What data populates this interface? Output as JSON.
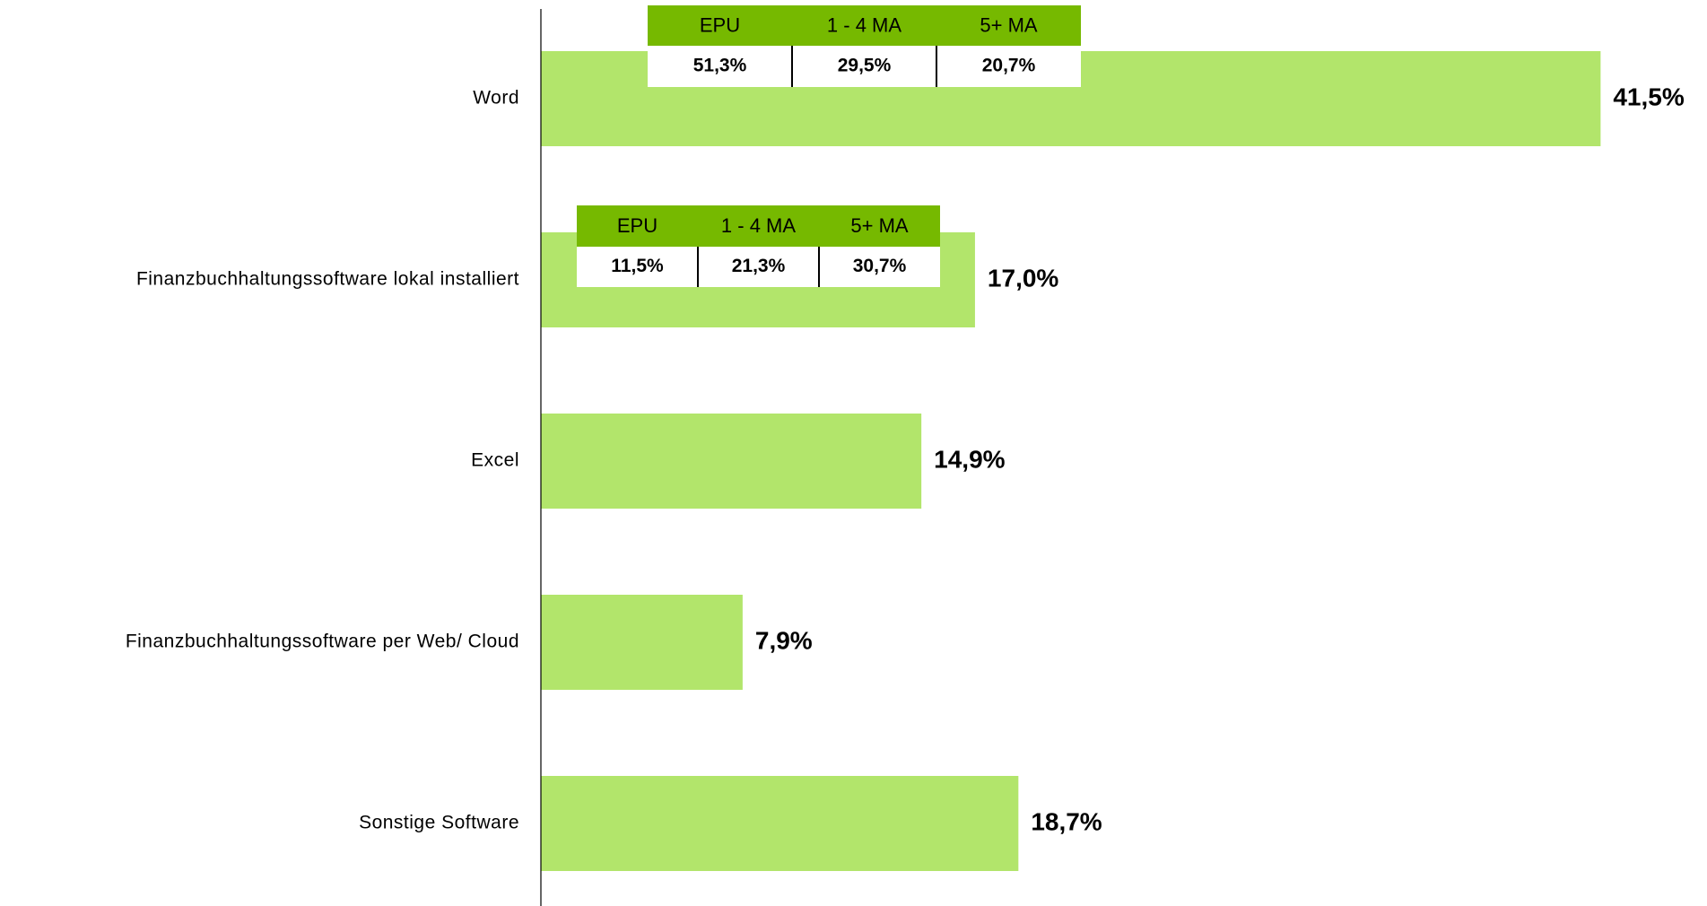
{
  "chart_data": {
    "type": "bar",
    "orientation": "horizontal",
    "categories": [
      "Word",
      "Finanzbuchhaltungssoftware lokal installiert",
      "Excel",
      "Finanzbuchhaltungssoftware per Web/ Cloud",
      "Sonstige Software"
    ],
    "values": [
      41.5,
      17.0,
      14.9,
      7.9,
      18.7
    ],
    "value_labels": [
      "41,5%",
      "17,0%",
      "14,9%",
      "7,9%",
      "18,7%"
    ],
    "color": "#b2e56b",
    "xlim": [
      0,
      45
    ],
    "breakdowns": [
      {
        "columns": [
          "EPU",
          "1 - 4 MA",
          "5+ MA"
        ],
        "cells": [
          "51,3%",
          "29,5%",
          "20,7%"
        ]
      },
      {
        "columns": [
          "EPU",
          "1 - 4 MA",
          "5+ MA"
        ],
        "cells": [
          "11,5%",
          "21,3%",
          "30,7%"
        ]
      },
      null,
      null,
      null
    ],
    "header_color": "#76b900"
  }
}
